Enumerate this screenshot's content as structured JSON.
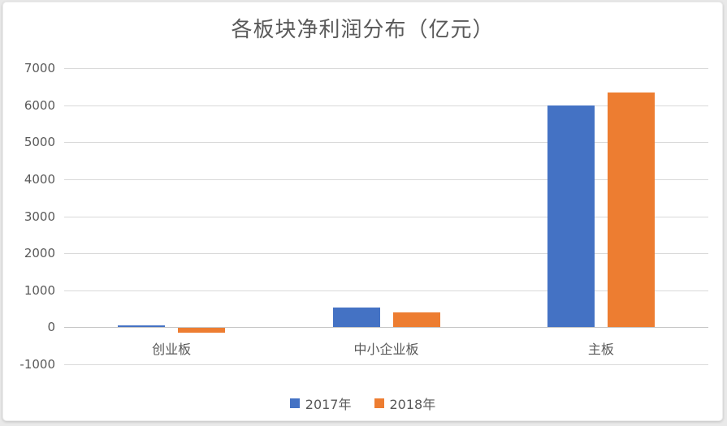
{
  "title": "各板块净利润分布（亿元）",
  "colors": {
    "series_2017": "#4472C4",
    "series_2018": "#ED7D31",
    "gridline": "#D9D9D9",
    "zero_axis_line": "#C6C6C6",
    "text": "#595959",
    "background": "#FFFFFF"
  },
  "chart_data": {
    "type": "bar",
    "title": "各板块净利润分布（亿元）",
    "categories": [
      "创业板",
      "中小企业板",
      "主板"
    ],
    "series": [
      {
        "name": "2017年",
        "color": "#4472C4",
        "values": [
          50,
          530,
          6000
        ]
      },
      {
        "name": "2018年",
        "color": "#ED7D31",
        "values": [
          -130,
          400,
          6350
        ]
      }
    ],
    "xlabel": "",
    "ylabel": "",
    "ylim": [
      -1000,
      7000
    ],
    "ytick_interval": 1000,
    "yticks": [
      7000,
      6000,
      5000,
      4000,
      3000,
      2000,
      1000,
      0,
      -1000
    ],
    "grid": true,
    "legend_position": "bottom"
  }
}
